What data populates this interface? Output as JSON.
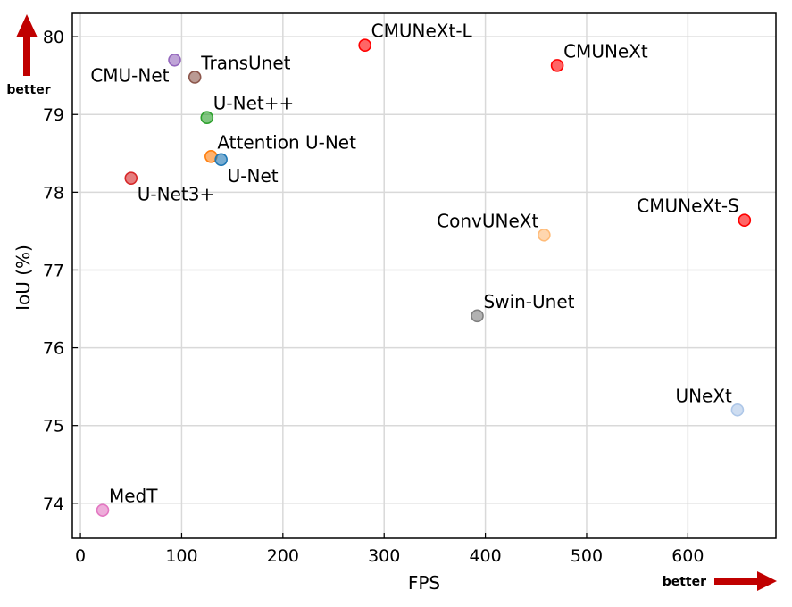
{
  "chart_data": {
    "type": "scatter",
    "xlabel": "FPS",
    "ylabel": "IoU (%)",
    "xlim": [
      -8,
      687
    ],
    "ylim": [
      73.55,
      80.3
    ],
    "xticks": [
      0,
      100,
      200,
      300,
      400,
      500,
      600
    ],
    "yticks": [
      74,
      75,
      76,
      77,
      78,
      79,
      80
    ],
    "grid": true,
    "points": [
      {
        "name": "CMU-Net",
        "x": 93,
        "y": 79.7,
        "color": "#9467bd",
        "label_pos": "left-below"
      },
      {
        "name": "TransUnet",
        "x": 113,
        "y": 79.48,
        "color": "#8c564b",
        "label_pos": "upper-right"
      },
      {
        "name": "U-Net++",
        "x": 125,
        "y": 78.96,
        "color": "#2ca02c",
        "label_pos": "upper-right"
      },
      {
        "name": "Attention U-Net",
        "x": 129,
        "y": 78.46,
        "color": "#ff7f0e",
        "label_pos": "upper-right"
      },
      {
        "name": "U-Net",
        "x": 139,
        "y": 78.42,
        "color": "#1f77b4",
        "label_pos": "lower-right"
      },
      {
        "name": "U-Net3+",
        "x": 50,
        "y": 78.18,
        "color": "#d62728",
        "label_pos": "lower-right"
      },
      {
        "name": "CMUNeXt-L",
        "x": 281,
        "y": 79.89,
        "color": "#ff0000",
        "label_pos": "upper-right"
      },
      {
        "name": "CMUNeXt",
        "x": 471,
        "y": 79.63,
        "color": "#ff0000",
        "label_pos": "upper-right"
      },
      {
        "name": "CMUNeXt-S",
        "x": 656,
        "y": 77.64,
        "color": "#ff0000",
        "label_pos": "upper-left"
      },
      {
        "name": "ConvUNeXt",
        "x": 458,
        "y": 77.45,
        "color": "#ffbb78",
        "label_pos": "upper-left"
      },
      {
        "name": "Swin-Unet",
        "x": 392,
        "y": 76.41,
        "color": "#7f7f7f",
        "label_pos": "upper-right"
      },
      {
        "name": "UNeXt",
        "x": 649,
        "y": 75.2,
        "color": "#aec7e8",
        "label_pos": "upper-left"
      },
      {
        "name": "MedT",
        "x": 22,
        "y": 73.91,
        "color": "#e377c2",
        "label_pos": "upper-right"
      }
    ],
    "annotations": {
      "better_y": "better",
      "better_x": "better",
      "arrow_color": "#c00000"
    }
  }
}
